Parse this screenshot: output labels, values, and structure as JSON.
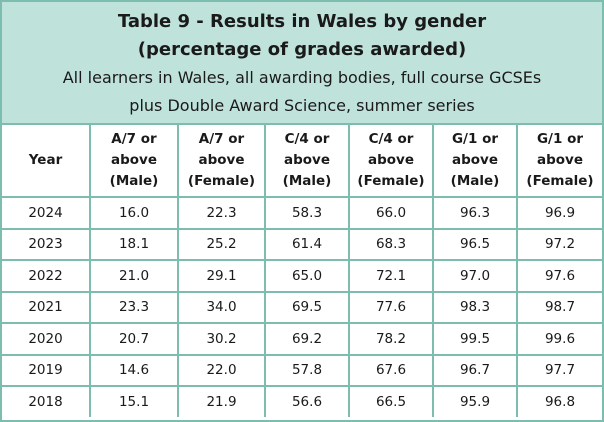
{
  "header": {
    "title": [
      "Table 9 - Results in Wales by gender",
      "(percentage of grades awarded)"
    ],
    "subtitle": [
      "All learners in Wales, all awarding bodies, full course GCSEs",
      "plus Double Award Science, summer series"
    ]
  },
  "table": {
    "columns": [
      "Year",
      "A/7 or above (Male)",
      "A/7 or above (Female)",
      "C/4 or above (Male)",
      "C/4 or above (Female)",
      "G/1 or above (Male)",
      "G/1 or above (Female)"
    ],
    "rows": [
      [
        "2024",
        "16.0",
        "22.3",
        "58.3",
        "66.0",
        "96.3",
        "96.9"
      ],
      [
        "2023",
        "18.1",
        "25.2",
        "61.4",
        "68.3",
        "96.5",
        "97.2"
      ],
      [
        "2022",
        "21.0",
        "29.1",
        "65.0",
        "72.1",
        "97.0",
        "97.6"
      ],
      [
        "2021",
        "23.3",
        "34.0",
        "69.5",
        "77.6",
        "98.3",
        "98.7"
      ],
      [
        "2020",
        "20.7",
        "30.2",
        "69.2",
        "78.2",
        "99.5",
        "99.6"
      ],
      [
        "2019",
        "14.6",
        "22.0",
        "57.8",
        "67.6",
        "96.7",
        "97.7"
      ],
      [
        "2018",
        "15.1",
        "21.9",
        "56.6",
        "66.5",
        "95.9",
        "96.8"
      ]
    ]
  }
}
